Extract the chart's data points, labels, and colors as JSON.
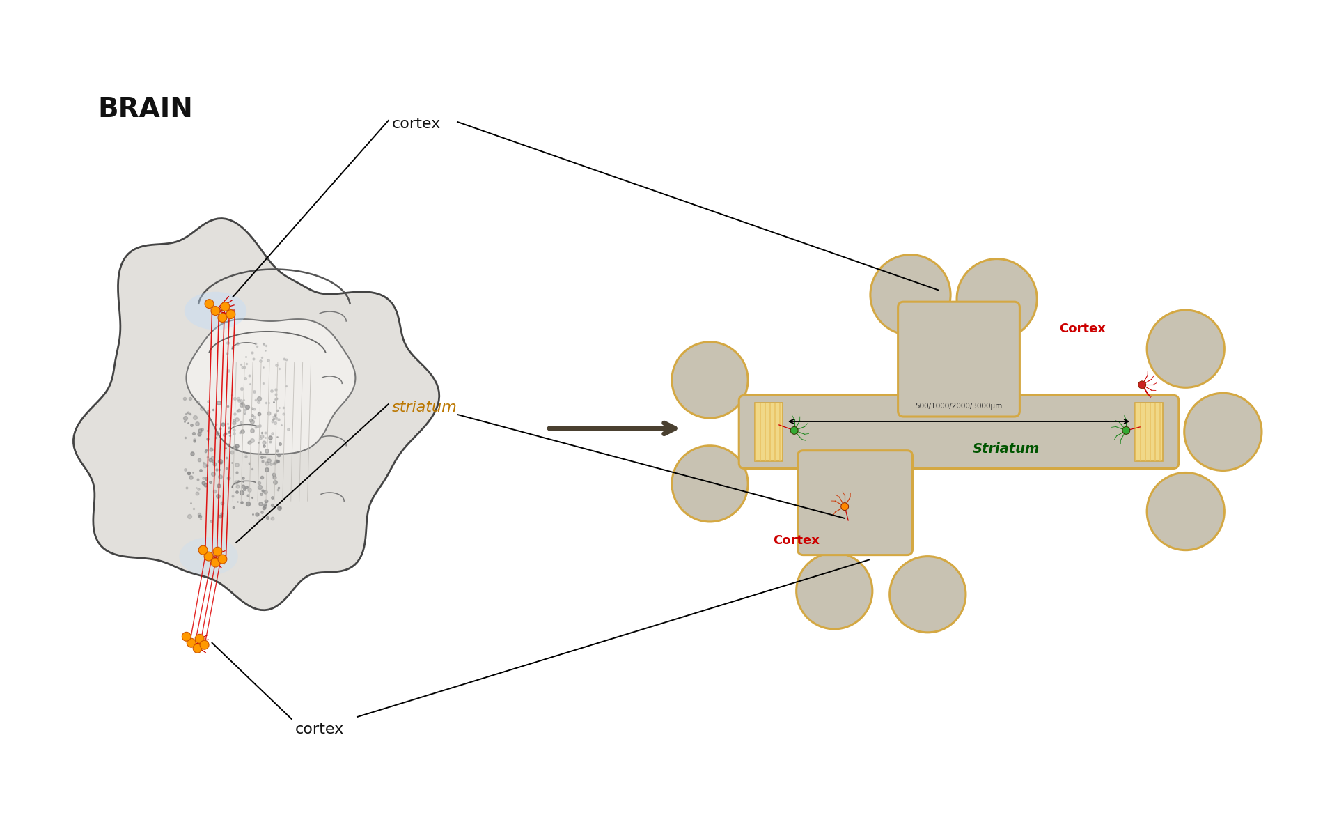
{
  "bg_color": "#ffffff",
  "brain_label": "BRAIN",
  "cortex_label": "cortex",
  "striatum_label": "striatum",
  "Cortex_label": "Cortex",
  "Striatum_label": "Striatum",
  "scale_label": "500/1000/2000/3000μm",
  "arrow_color": "#4a4030",
  "chip_border_color": "#d4a843",
  "chip_fill_color": "#c8c2b2",
  "stripe_color": "#e8c060",
  "stripe_bg_color": "#f0d888",
  "neuron_orange": "#ff8800",
  "neuron_red": "#cc0000",
  "neuron_green": "#33aa33",
  "cortex_red": "#cc0000",
  "striatum_green": "#005500",
  "label_cortex_color": "#111111",
  "label_striatum_color": "#bb7700",
  "brain_outer_color": "#dddddd",
  "brain_edge_color": "#666666",
  "brain_inner_color": "#cccccc"
}
